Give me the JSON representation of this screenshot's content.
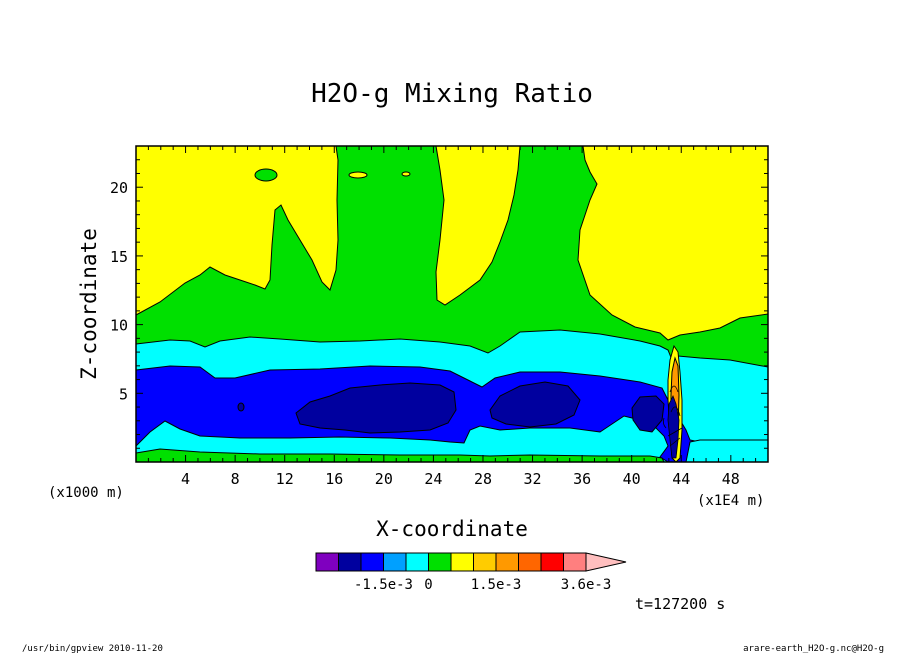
{
  "chart_data": {
    "type": "heatmap",
    "title": "H2O-g Mixing Ratio",
    "xlabel": "X-coordinate",
    "ylabel": "Z-coordinate",
    "x_unit": "(x1000 m)",
    "x_scale_note": "(x1E4 m)",
    "x_ticks": [
      4,
      8,
      12,
      16,
      20,
      24,
      28,
      32,
      36,
      40,
      44,
      48
    ],
    "y_ticks": [
      5,
      10,
      15,
      20
    ],
    "xlim": [
      0,
      51
    ],
    "ylim": [
      0,
      23
    ],
    "colorbar": {
      "colors": [
        "#7f00bf",
        "#00009f",
        "#0000ff",
        "#00a0ff",
        "#00ffff",
        "#00e000",
        "#ffff00",
        "#ffcc00",
        "#ff9900",
        "#ff6600",
        "#ff0000",
        "#ff7f7f",
        "#ffbfbf"
      ],
      "tick_labels": [
        "-1.5e-3",
        "0",
        "1.5e-3",
        "3.6e-3"
      ]
    },
    "time_label": "t=127200 s",
    "structure": {
      "bottom_to_top_bands": [
        "thin green band near surface",
        "cyan layer",
        "blue layer 2-7 km",
        "dark blue cells near z=4 km centered x=18-24 and x=32",
        "cyan layer 7-9 km",
        "green layer 9-12 km with tongues reaching top near x=17-20 and x=32-36",
        "yellow region above"
      ],
      "strong_localized_feature_x": 43.5
    }
  },
  "footer": {
    "left": "/usr/bin/gpview   2010-11-20",
    "right": "arare-earth_H2O-g.nc@H2O-g"
  }
}
